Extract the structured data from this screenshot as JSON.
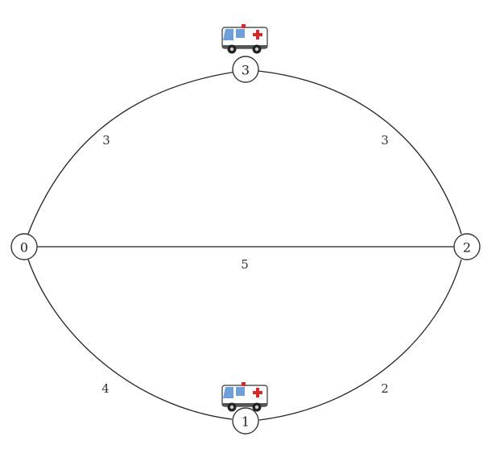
{
  "graph": {
    "nodes": [
      {
        "id": "0",
        "label": "0"
      },
      {
        "id": "1",
        "label": "1"
      },
      {
        "id": "2",
        "label": "2"
      },
      {
        "id": "3",
        "label": "3"
      }
    ],
    "edges": [
      {
        "from": "0",
        "to": "3",
        "weight": "3"
      },
      {
        "from": "3",
        "to": "2",
        "weight": "3"
      },
      {
        "from": "0",
        "to": "2",
        "weight": "5"
      },
      {
        "from": "0",
        "to": "1",
        "weight": "4"
      },
      {
        "from": "1",
        "to": "2",
        "weight": "2"
      }
    ],
    "ambulances": [
      {
        "at": "3",
        "icon": "ambulance-icon"
      },
      {
        "at": "1",
        "icon": "ambulance-icon"
      }
    ]
  },
  "colors": {
    "ambulance_body": "#ffffff",
    "ambulance_window": "#6f9fd8",
    "ambulance_cross": "#d62828",
    "wheel": "#222222"
  }
}
